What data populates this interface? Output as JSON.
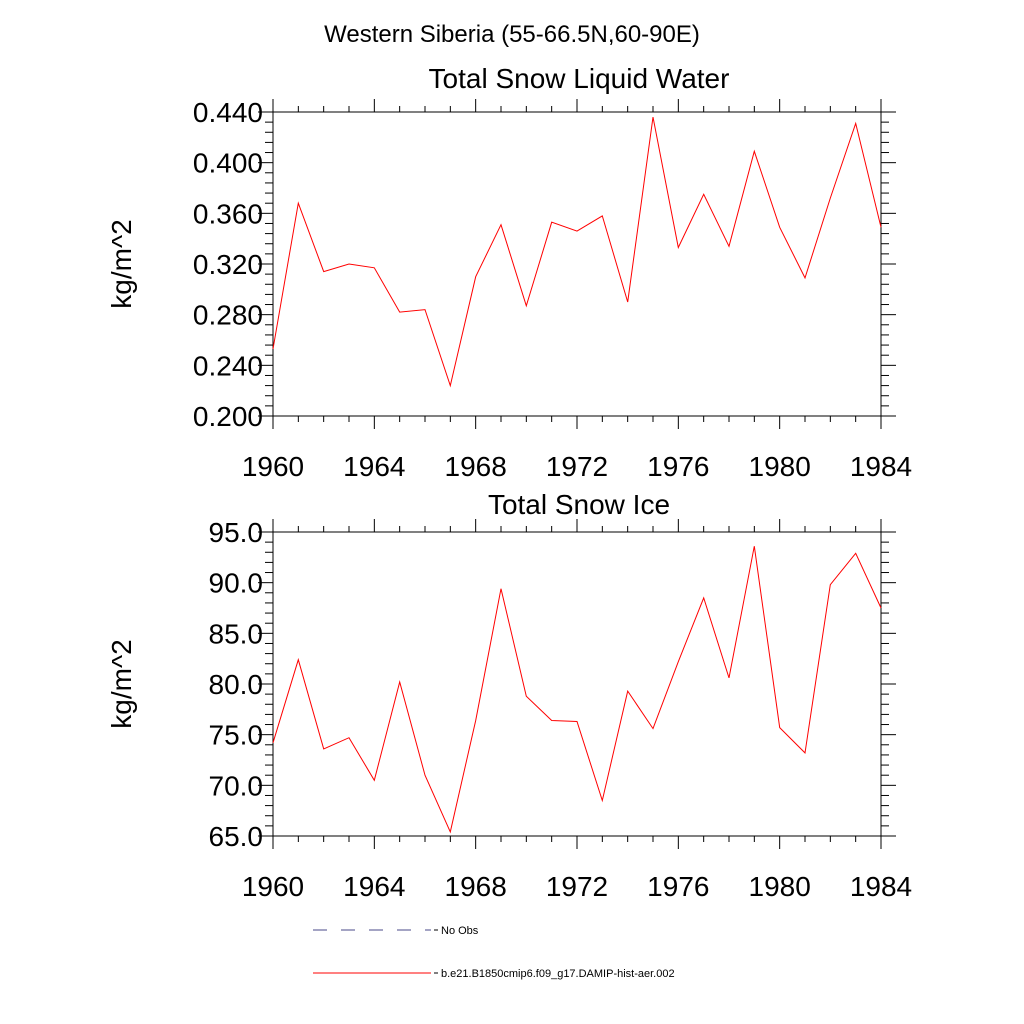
{
  "figure": {
    "title": "Western Siberia (55-66.5N,60-90E)",
    "legend": [
      {
        "label": "No Obs",
        "color": "#4a4a8a",
        "style": "dashed"
      },
      {
        "label": "b.e21.B1850cmip6.f09_g17.DAMIP-hist-aer.002",
        "color": "#ff0000",
        "style": "solid"
      }
    ]
  },
  "chart_data": [
    {
      "type": "line",
      "title": "Total Snow Liquid Water",
      "xlabel": "",
      "ylabel": "kg/m^2",
      "xlim": [
        1960,
        1984
      ],
      "ylim": [
        0.2,
        0.44
      ],
      "xticks": [
        1960,
        1964,
        1968,
        1972,
        1976,
        1980,
        1984
      ],
      "yticks": [
        "0.200",
        "0.240",
        "0.280",
        "0.320",
        "0.360",
        "0.400",
        "0.440"
      ],
      "grid": false,
      "legend_position": "bottom",
      "x": [
        1960,
        1961,
        1962,
        1963,
        1964,
        1965,
        1966,
        1967,
        1968,
        1969,
        1970,
        1971,
        1972,
        1973,
        1974,
        1975,
        1976,
        1977,
        1978,
        1979,
        1980,
        1981,
        1982,
        1983,
        1984
      ],
      "series": [
        {
          "name": "b.e21.B1850cmip6.f09_g17.DAMIP-hist-aer.002",
          "color": "#ff0000",
          "values": [
            0.253,
            0.368,
            0.314,
            0.32,
            0.317,
            0.282,
            0.284,
            0.224,
            0.31,
            0.351,
            0.287,
            0.353,
            0.346,
            0.358,
            0.29,
            0.436,
            0.333,
            0.375,
            0.334,
            0.409,
            0.349,
            0.309,
            0.372,
            0.431,
            0.349
          ]
        }
      ]
    },
    {
      "type": "line",
      "title": "Total Snow Ice",
      "xlabel": "",
      "ylabel": "kg/m^2",
      "xlim": [
        1960,
        1984
      ],
      "ylim": [
        65,
        95
      ],
      "xticks": [
        1960,
        1964,
        1968,
        1972,
        1976,
        1980,
        1984
      ],
      "yticks": [
        "65.0",
        "70.0",
        "75.0",
        "80.0",
        "85.0",
        "90.0",
        "95.0"
      ],
      "grid": false,
      "legend_position": "bottom",
      "x": [
        1960,
        1961,
        1962,
        1963,
        1964,
        1965,
        1966,
        1967,
        1968,
        1969,
        1970,
        1971,
        1972,
        1973,
        1974,
        1975,
        1976,
        1977,
        1978,
        1979,
        1980,
        1981,
        1982,
        1983,
        1984
      ],
      "series": [
        {
          "name": "b.e21.B1850cmip6.f09_g17.DAMIP-hist-aer.002",
          "color": "#ff0000",
          "values": [
            74.2,
            82.4,
            73.6,
            74.7,
            70.5,
            80.2,
            71.0,
            65.4,
            76.4,
            89.4,
            78.8,
            76.4,
            76.3,
            68.5,
            79.3,
            75.6,
            82.2,
            88.5,
            80.6,
            93.6,
            75.7,
            73.2,
            89.8,
            92.9,
            87.5
          ]
        }
      ]
    }
  ]
}
